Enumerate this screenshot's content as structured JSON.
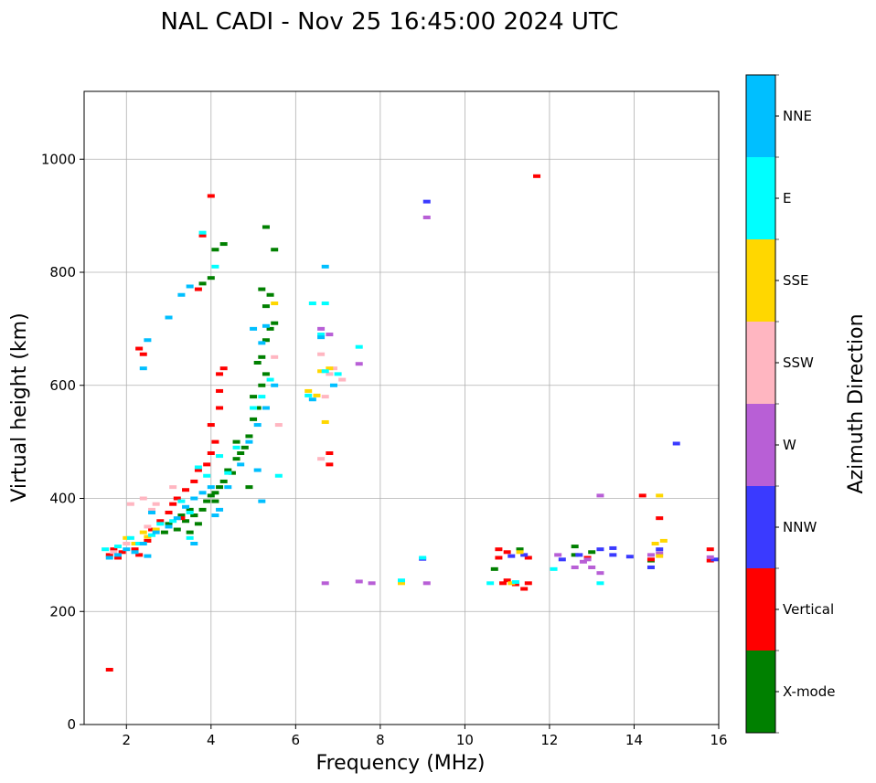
{
  "chart_data": {
    "type": "scatter",
    "title": "NAL CADI - Nov 25 16:45:00 2024 UTC",
    "xlabel": "Frequency (MHz)",
    "ylabel": "Virtual height (km)",
    "xlim": [
      1,
      16
    ],
    "ylim": [
      0,
      1120
    ],
    "xticks": [
      "2",
      "4",
      "6",
      "8",
      "10",
      "12",
      "14",
      "16"
    ],
    "xtick_values": [
      2,
      4,
      6,
      8,
      10,
      12,
      14,
      16
    ],
    "yticks": [
      "0",
      "200",
      "400",
      "600",
      "800",
      "1000"
    ],
    "ytick_values": [
      0,
      200,
      400,
      600,
      800,
      1000
    ],
    "grid": true,
    "colorbar": {
      "label": "Azimuth Direction",
      "categories": [
        {
          "name": "X-mode",
          "color": "#008000"
        },
        {
          "name": "Vertical",
          "color": "#ff0000"
        },
        {
          "name": "NNW",
          "color": "#3a3aff"
        },
        {
          "name": "W",
          "color": "#b85fd6"
        },
        {
          "name": "SSW",
          "color": "#ffb6c1"
        },
        {
          "name": "SSE",
          "color": "#ffd700"
        },
        {
          "name": "E",
          "color": "#00ffff"
        },
        {
          "name": "NNE",
          "color": "#00bfff"
        }
      ]
    },
    "series": [
      {
        "name": "X-mode",
        "points": [
          [
            2.9,
            340
          ],
          [
            3.0,
            355
          ],
          [
            3.2,
            345
          ],
          [
            3.3,
            370
          ],
          [
            3.4,
            360
          ],
          [
            3.5,
            380
          ],
          [
            3.6,
            370
          ],
          [
            3.7,
            355
          ],
          [
            3.8,
            380
          ],
          [
            3.9,
            395
          ],
          [
            4.0,
            405
          ],
          [
            4.1,
            410
          ],
          [
            4.1,
            395
          ],
          [
            4.2,
            420
          ],
          [
            4.3,
            430
          ],
          [
            4.4,
            450
          ],
          [
            4.5,
            445
          ],
          [
            4.6,
            470
          ],
          [
            4.7,
            480
          ],
          [
            4.8,
            490
          ],
          [
            4.9,
            510
          ],
          [
            5.0,
            540
          ],
          [
            5.0,
            580
          ],
          [
            5.1,
            560
          ],
          [
            5.2,
            600
          ],
          [
            5.3,
            620
          ],
          [
            5.2,
            650
          ],
          [
            5.3,
            680
          ],
          [
            5.4,
            700
          ],
          [
            5.3,
            740
          ],
          [
            5.4,
            760
          ],
          [
            5.5,
            710
          ],
          [
            5.2,
            770
          ],
          [
            4.0,
            790
          ],
          [
            4.1,
            840
          ],
          [
            4.3,
            850
          ],
          [
            5.3,
            880
          ],
          [
            5.5,
            840
          ],
          [
            3.8,
            780
          ],
          [
            3.6,
            370
          ],
          [
            3.5,
            340
          ],
          [
            4.6,
            500
          ],
          [
            4.9,
            420
          ],
          [
            10.7,
            275
          ],
          [
            11.3,
            310
          ],
          [
            12.6,
            300
          ],
          [
            12.6,
            315
          ],
          [
            13.0,
            305
          ],
          [
            14.4,
            290
          ],
          [
            5.1,
            640
          ]
        ]
      },
      {
        "name": "Vertical",
        "points": [
          [
            1.6,
            300
          ],
          [
            1.7,
            310
          ],
          [
            1.8,
            295
          ],
          [
            1.9,
            305
          ],
          [
            2.2,
            310
          ],
          [
            2.3,
            300
          ],
          [
            2.5,
            325
          ],
          [
            2.6,
            345
          ],
          [
            2.8,
            360
          ],
          [
            3.0,
            375
          ],
          [
            3.1,
            390
          ],
          [
            3.2,
            400
          ],
          [
            3.4,
            415
          ],
          [
            3.6,
            430
          ],
          [
            3.7,
            450
          ],
          [
            3.9,
            460
          ],
          [
            4.0,
            480
          ],
          [
            4.0,
            530
          ],
          [
            4.1,
            500
          ],
          [
            4.2,
            560
          ],
          [
            4.2,
            590
          ],
          [
            4.3,
            630
          ],
          [
            4.2,
            620
          ],
          [
            3.7,
            770
          ],
          [
            4.0,
            935
          ],
          [
            3.8,
            865
          ],
          [
            1.6,
            97
          ],
          [
            2.3,
            665
          ],
          [
            2.4,
            655
          ],
          [
            6.8,
            480
          ],
          [
            6.8,
            460
          ],
          [
            10.8,
            295
          ],
          [
            10.9,
            250
          ],
          [
            11.0,
            255
          ],
          [
            11.2,
            248
          ],
          [
            11.4,
            240
          ],
          [
            11.5,
            250
          ],
          [
            11.0,
            305
          ],
          [
            11.5,
            295
          ],
          [
            10.8,
            310
          ],
          [
            14.2,
            405
          ],
          [
            14.4,
            292
          ],
          [
            14.6,
            365
          ],
          [
            15.8,
            310
          ],
          [
            15.8,
            290
          ],
          [
            11.7,
            970
          ],
          [
            12.9,
            295
          ],
          [
            3.3,
            365
          ]
        ]
      },
      {
        "name": "NNW",
        "points": [
          [
            9.1,
            925
          ],
          [
            15.0,
            497
          ],
          [
            13.9,
            297
          ],
          [
            13.5,
            312
          ],
          [
            13.5,
            300
          ],
          [
            13.2,
            310
          ],
          [
            12.7,
            300
          ],
          [
            12.3,
            292
          ],
          [
            14.4,
            278
          ],
          [
            14.6,
            310
          ],
          [
            11.4,
            300
          ],
          [
            11.1,
            298
          ],
          [
            9.0,
            293
          ],
          [
            15.9,
            292
          ]
        ]
      },
      {
        "name": "W",
        "points": [
          [
            9.1,
            897
          ],
          [
            13.2,
            405
          ],
          [
            9.1,
            250
          ],
          [
            7.5,
            253
          ],
          [
            7.8,
            250
          ],
          [
            6.6,
            700
          ],
          [
            6.8,
            690
          ],
          [
            7.5,
            638
          ],
          [
            12.2,
            300
          ],
          [
            12.6,
            278
          ],
          [
            13.0,
            278
          ],
          [
            13.2,
            268
          ],
          [
            14.4,
            300
          ],
          [
            14.6,
            303
          ],
          [
            15.8,
            296
          ],
          [
            12.8,
            288
          ],
          [
            6.7,
            250
          ],
          [
            12.9,
            292
          ]
        ]
      },
      {
        "name": "SSW",
        "points": [
          [
            2.1,
            390
          ],
          [
            2.4,
            400
          ],
          [
            2.0,
            320
          ],
          [
            2.5,
            350
          ],
          [
            2.6,
            380
          ],
          [
            3.1,
            420
          ],
          [
            6.6,
            655
          ],
          [
            6.7,
            580
          ],
          [
            6.8,
            620
          ],
          [
            6.6,
            470
          ],
          [
            7.1,
            610
          ],
          [
            5.6,
            530
          ],
          [
            1.7,
            305
          ],
          [
            2.7,
            390
          ],
          [
            5.5,
            650
          ],
          [
            6.9,
            630
          ]
        ]
      },
      {
        "name": "SSE",
        "points": [
          [
            2.0,
            330
          ],
          [
            2.2,
            320
          ],
          [
            2.4,
            340
          ],
          [
            2.5,
            332
          ],
          [
            2.7,
            345
          ],
          [
            6.7,
            535
          ],
          [
            6.8,
            630
          ],
          [
            6.6,
            625
          ],
          [
            8.5,
            250
          ],
          [
            14.6,
            405
          ],
          [
            14.5,
            320
          ],
          [
            14.7,
            325
          ],
          [
            14.6,
            298
          ],
          [
            11.3,
            305
          ],
          [
            11.1,
            250
          ],
          [
            6.3,
            590
          ],
          [
            6.5,
            582
          ],
          [
            5.5,
            745
          ]
        ]
      },
      {
        "name": "E",
        "points": [
          [
            1.5,
            310
          ],
          [
            1.8,
            315
          ],
          [
            2.1,
            330
          ],
          [
            2.3,
            320
          ],
          [
            2.6,
            335
          ],
          [
            2.8,
            355
          ],
          [
            3.1,
            360
          ],
          [
            3.3,
            395
          ],
          [
            3.5,
            375
          ],
          [
            3.7,
            455
          ],
          [
            3.9,
            440
          ],
          [
            4.2,
            475
          ],
          [
            4.4,
            445
          ],
          [
            4.6,
            490
          ],
          [
            5.0,
            560
          ],
          [
            5.2,
            580
          ],
          [
            5.4,
            610
          ],
          [
            5.6,
            440
          ],
          [
            6.4,
            745
          ],
          [
            6.7,
            745
          ],
          [
            6.6,
            690
          ],
          [
            6.3,
            582
          ],
          [
            7.5,
            668
          ],
          [
            3.8,
            870
          ],
          [
            4.1,
            810
          ],
          [
            7.0,
            620
          ],
          [
            9.0,
            295
          ],
          [
            8.5,
            255
          ],
          [
            11.2,
            252
          ],
          [
            13.2,
            250
          ],
          [
            10.6,
            250
          ],
          [
            12.1,
            275
          ],
          [
            6.7,
            625
          ],
          [
            3.5,
            330
          ]
        ]
      },
      {
        "name": "NNE",
        "points": [
          [
            1.6,
            295
          ],
          [
            1.8,
            300
          ],
          [
            2.0,
            310
          ],
          [
            2.2,
            305
          ],
          [
            2.4,
            320
          ],
          [
            2.5,
            298
          ],
          [
            2.7,
            340
          ],
          [
            3.0,
            350
          ],
          [
            3.2,
            365
          ],
          [
            3.4,
            385
          ],
          [
            3.6,
            400
          ],
          [
            3.8,
            410
          ],
          [
            4.0,
            420
          ],
          [
            4.2,
            380
          ],
          [
            4.4,
            420
          ],
          [
            4.7,
            460
          ],
          [
            4.9,
            500
          ],
          [
            5.1,
            530
          ],
          [
            5.3,
            560
          ],
          [
            5.1,
            450
          ],
          [
            5.2,
            395
          ],
          [
            5.2,
            675
          ],
          [
            5.3,
            705
          ],
          [
            5.0,
            700
          ],
          [
            6.6,
            685
          ],
          [
            6.4,
            575
          ],
          [
            6.9,
            600
          ],
          [
            2.4,
            630
          ],
          [
            2.5,
            680
          ],
          [
            3.0,
            720
          ],
          [
            3.3,
            760
          ],
          [
            3.5,
            775
          ],
          [
            2.6,
            375
          ],
          [
            3.6,
            320
          ],
          [
            5.5,
            600
          ],
          [
            4.1,
            370
          ],
          [
            6.7,
            810
          ]
        ]
      }
    ]
  }
}
